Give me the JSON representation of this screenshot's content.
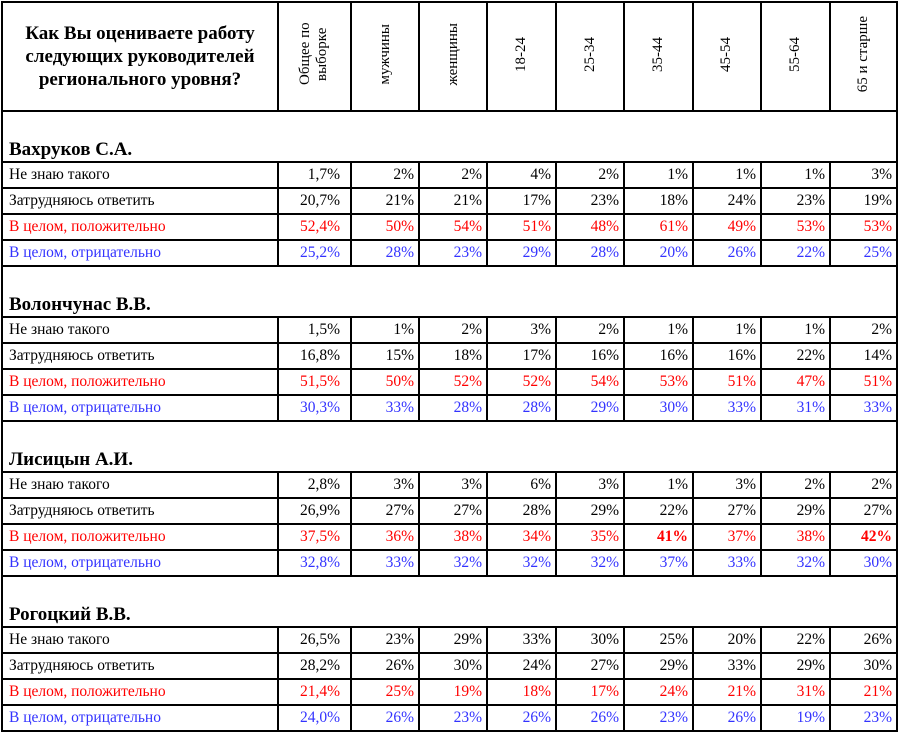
{
  "question": "Как Вы оцениваете работу следующих руководителей регионального уровня?",
  "columns": [
    "Общее по выборке",
    "мужчины",
    "женщины",
    "18-24",
    "25-34",
    "35-44",
    "45-54",
    "55-64",
    "65 и старше"
  ],
  "labels": {
    "dont_know": "Не знаю такого",
    "hard": "Затрудняюсь ответить",
    "positive": "В целом, положительно",
    "negative": "В целом, отрицательно"
  },
  "persons": [
    {
      "name": "Вахруков С.А.",
      "dont_know": [
        "1,7%",
        "2%",
        "2%",
        "4%",
        "2%",
        "1%",
        "1%",
        "1%",
        "3%"
      ],
      "hard": [
        "20,7%",
        "21%",
        "21%",
        "17%",
        "23%",
        "18%",
        "24%",
        "23%",
        "19%"
      ],
      "positive": [
        "52,4%",
        "50%",
        "54%",
        "51%",
        "48%",
        "61%",
        "49%",
        "53%",
        "53%"
      ],
      "negative": [
        "25,2%",
        "28%",
        "23%",
        "29%",
        "28%",
        "20%",
        "26%",
        "22%",
        "25%"
      ]
    },
    {
      "name": "Волончунас В.В.",
      "dont_know": [
        "1,5%",
        "1%",
        "2%",
        "3%",
        "2%",
        "1%",
        "1%",
        "1%",
        "2%"
      ],
      "hard": [
        "16,8%",
        "15%",
        "18%",
        "17%",
        "16%",
        "16%",
        "16%",
        "22%",
        "14%"
      ],
      "positive": [
        "51,5%",
        "50%",
        "52%",
        "52%",
        "54%",
        "53%",
        "51%",
        "47%",
        "51%"
      ],
      "negative": [
        "30,3%",
        "33%",
        "28%",
        "28%",
        "29%",
        "30%",
        "33%",
        "31%",
        "33%"
      ]
    },
    {
      "name": "Лисицын А.И.",
      "dont_know": [
        "2,8%",
        "3%",
        "3%",
        "6%",
        "3%",
        "1%",
        "3%",
        "2%",
        "2%"
      ],
      "hard": [
        "26,9%",
        "27%",
        "27%",
        "28%",
        "29%",
        "22%",
        "27%",
        "29%",
        "27%"
      ],
      "positive": [
        "37,5%",
        "36%",
        "38%",
        "34%",
        "35%",
        "41%",
        "37%",
        "38%",
        "42%"
      ],
      "negative": [
        "32,8%",
        "33%",
        "32%",
        "32%",
        "32%",
        "37%",
        "33%",
        "32%",
        "30%"
      ]
    },
    {
      "name": "Рогоцкий В.В.",
      "dont_know": [
        "26,5%",
        "23%",
        "29%",
        "33%",
        "30%",
        "25%",
        "20%",
        "22%",
        "26%"
      ],
      "hard": [
        "28,2%",
        "26%",
        "30%",
        "24%",
        "27%",
        "29%",
        "33%",
        "29%",
        "30%"
      ],
      "positive": [
        "21,4%",
        "25%",
        "19%",
        "18%",
        "17%",
        "24%",
        "21%",
        "31%",
        "21%"
      ],
      "negative": [
        "24,0%",
        "26%",
        "23%",
        "26%",
        "26%",
        "23%",
        "26%",
        "19%",
        "23%"
      ]
    }
  ],
  "colors": {
    "positive": "#ff0000",
    "negative": "#3333ff"
  }
}
